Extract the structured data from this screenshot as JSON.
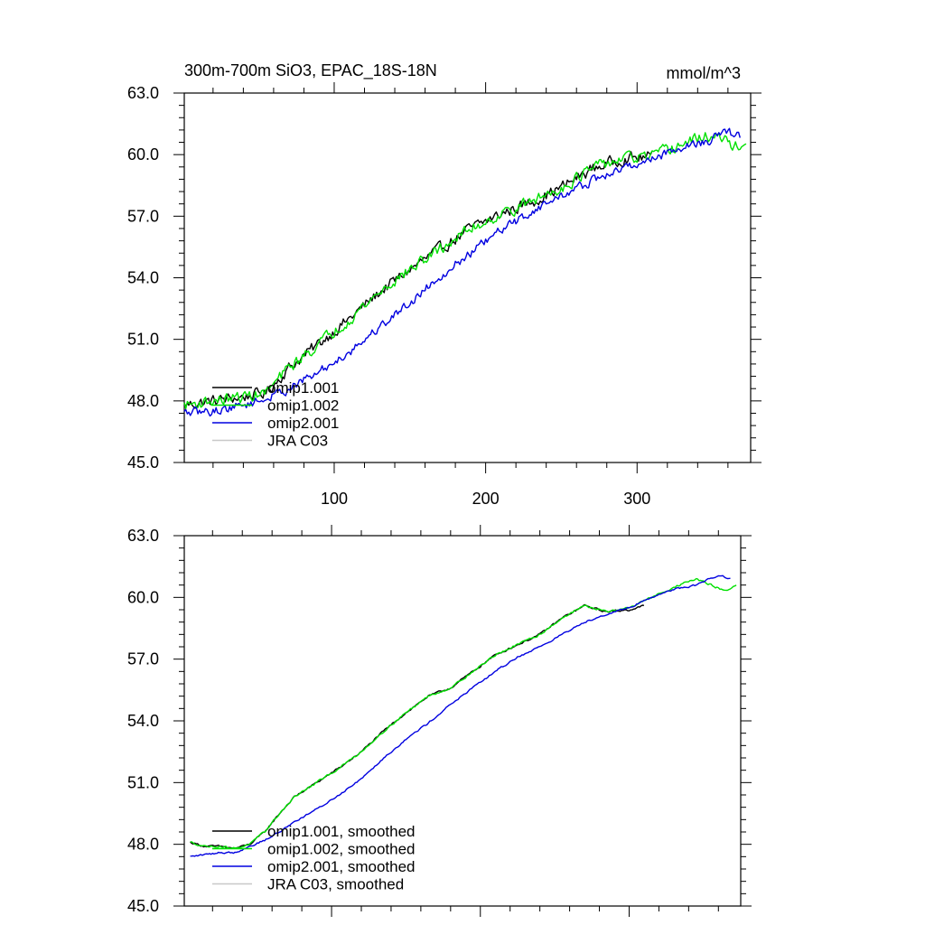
{
  "chart_data": [
    {
      "type": "line",
      "title": "300m-700m SiO3, EPAC_18S-18N",
      "units": "mmol/m^3",
      "xlabel": "",
      "ylabel": "",
      "xlim": [
        1,
        375
      ],
      "ylim": [
        45.0,
        63.0
      ],
      "xticks": [
        100,
        200,
        300
      ],
      "xtick_labels": [
        "100",
        "200",
        "300"
      ],
      "yticks": [
        45.0,
        48.0,
        51.0,
        54.0,
        57.0,
        60.0,
        63.0
      ],
      "ytick_labels": [
        "45.0",
        "48.0",
        "51.0",
        "54.0",
        "57.0",
        "60.0",
        "63.0"
      ],
      "legend_position": "lower-left",
      "legend": [
        "omip1.001",
        "omip1.002",
        "omip2.001",
        "JRA C03"
      ],
      "series": [
        {
          "name": "omip1.001",
          "color": "#000000",
          "noise": 0.45,
          "x": [
            1,
            20,
            40,
            55,
            70,
            90,
            110,
            130,
            150,
            170,
            190,
            210,
            230,
            250,
            270,
            290,
            310
          ],
          "values": [
            47.8,
            48.0,
            48.2,
            48.4,
            49.6,
            50.8,
            52.0,
            53.3,
            54.4,
            55.4,
            56.4,
            57.1,
            57.7,
            58.4,
            59.3,
            59.8,
            59.9
          ]
        },
        {
          "name": "omip1.002",
          "color": "#00e000",
          "noise": 0.45,
          "x": [
            1,
            20,
            40,
            55,
            70,
            90,
            110,
            130,
            150,
            170,
            190,
            210,
            230,
            250,
            270,
            290,
            310,
            330,
            345,
            355,
            365,
            372
          ],
          "values": [
            47.8,
            48.0,
            48.2,
            48.4,
            49.6,
            50.8,
            52.0,
            53.3,
            54.4,
            55.4,
            56.4,
            57.1,
            57.7,
            58.4,
            59.3,
            59.8,
            59.9,
            60.5,
            60.9,
            60.8,
            60.4,
            60.6
          ]
        },
        {
          "name": "omip2.001",
          "color": "#0000e0",
          "noise": 0.35,
          "x": [
            1,
            20,
            40,
            55,
            70,
            90,
            110,
            130,
            150,
            170,
            190,
            210,
            230,
            250,
            270,
            290,
            310,
            330,
            345,
            360,
            368
          ],
          "values": [
            47.4,
            47.5,
            47.8,
            48.1,
            48.6,
            49.4,
            50.4,
            51.6,
            52.8,
            54.1,
            55.2,
            56.3,
            57.2,
            58.0,
            58.7,
            59.3,
            59.8,
            60.4,
            60.6,
            61.1,
            60.9
          ]
        },
        {
          "name": "JRA C03",
          "color": "#c8c8c8",
          "noise": 0,
          "x": [],
          "values": []
        }
      ]
    },
    {
      "type": "line",
      "title": "",
      "xlabel": "",
      "ylabel": "",
      "xlim": [
        1,
        375
      ],
      "ylim": [
        45.0,
        63.0
      ],
      "xticks": [
        100,
        200,
        300
      ],
      "xtick_labels": [],
      "yticks": [
        45.0,
        48.0,
        51.0,
        54.0,
        57.0,
        60.0,
        63.0
      ],
      "ytick_labels": [
        "45.0",
        "48.0",
        "51.0",
        "54.0",
        "57.0",
        "60.0",
        "63.0"
      ],
      "legend_position": "lower-left",
      "legend": [
        "omip1.001, smoothed",
        "omip1.002, smoothed",
        "omip2.001, smoothed",
        "JRA C03, smoothed"
      ],
      "series": [
        {
          "name": "omip1.001, smoothed",
          "color": "#000000",
          "noise": 0.08,
          "x": [
            5,
            15,
            25,
            35,
            45,
            55,
            65,
            75,
            90,
            105,
            120,
            135,
            150,
            165,
            180,
            195,
            210,
            225,
            240,
            255,
            270,
            285,
            300,
            310
          ],
          "values": [
            48.1,
            47.9,
            47.9,
            47.8,
            48.0,
            48.6,
            49.5,
            50.3,
            51.0,
            51.7,
            52.5,
            53.5,
            54.4,
            55.2,
            55.6,
            56.4,
            57.2,
            57.7,
            58.2,
            59.0,
            59.6,
            59.3,
            59.4,
            59.6
          ]
        },
        {
          "name": "omip1.002, smoothed",
          "color": "#00e000",
          "noise": 0.08,
          "x": [
            5,
            15,
            25,
            35,
            45,
            55,
            65,
            75,
            90,
            105,
            120,
            135,
            150,
            165,
            180,
            195,
            210,
            225,
            240,
            255,
            270,
            285,
            300,
            315,
            330,
            345,
            355,
            365,
            372
          ],
          "values": [
            48.1,
            47.9,
            47.9,
            47.8,
            48.0,
            48.6,
            49.5,
            50.3,
            51.0,
            51.7,
            52.5,
            53.5,
            54.4,
            55.2,
            55.6,
            56.4,
            57.2,
            57.7,
            58.2,
            59.0,
            59.6,
            59.3,
            59.5,
            60.0,
            60.5,
            60.9,
            60.6,
            60.3,
            60.6
          ]
        },
        {
          "name": "omip2.001, smoothed",
          "color": "#0000e0",
          "noise": 0.07,
          "x": [
            5,
            15,
            25,
            35,
            45,
            55,
            65,
            75,
            90,
            105,
            120,
            135,
            150,
            165,
            180,
            195,
            210,
            225,
            240,
            255,
            270,
            285,
            300,
            315,
            330,
            345,
            360,
            368
          ],
          "values": [
            47.4,
            47.5,
            47.6,
            47.6,
            47.9,
            48.2,
            48.6,
            49.1,
            49.7,
            50.4,
            51.2,
            52.2,
            53.1,
            53.9,
            54.8,
            55.6,
            56.4,
            57.1,
            57.6,
            58.2,
            58.8,
            59.2,
            59.5,
            60.0,
            60.4,
            60.6,
            61.1,
            60.9
          ]
        },
        {
          "name": "JRA C03, smoothed",
          "color": "#c8c8c8",
          "noise": 0,
          "x": [],
          "values": []
        }
      ]
    }
  ]
}
